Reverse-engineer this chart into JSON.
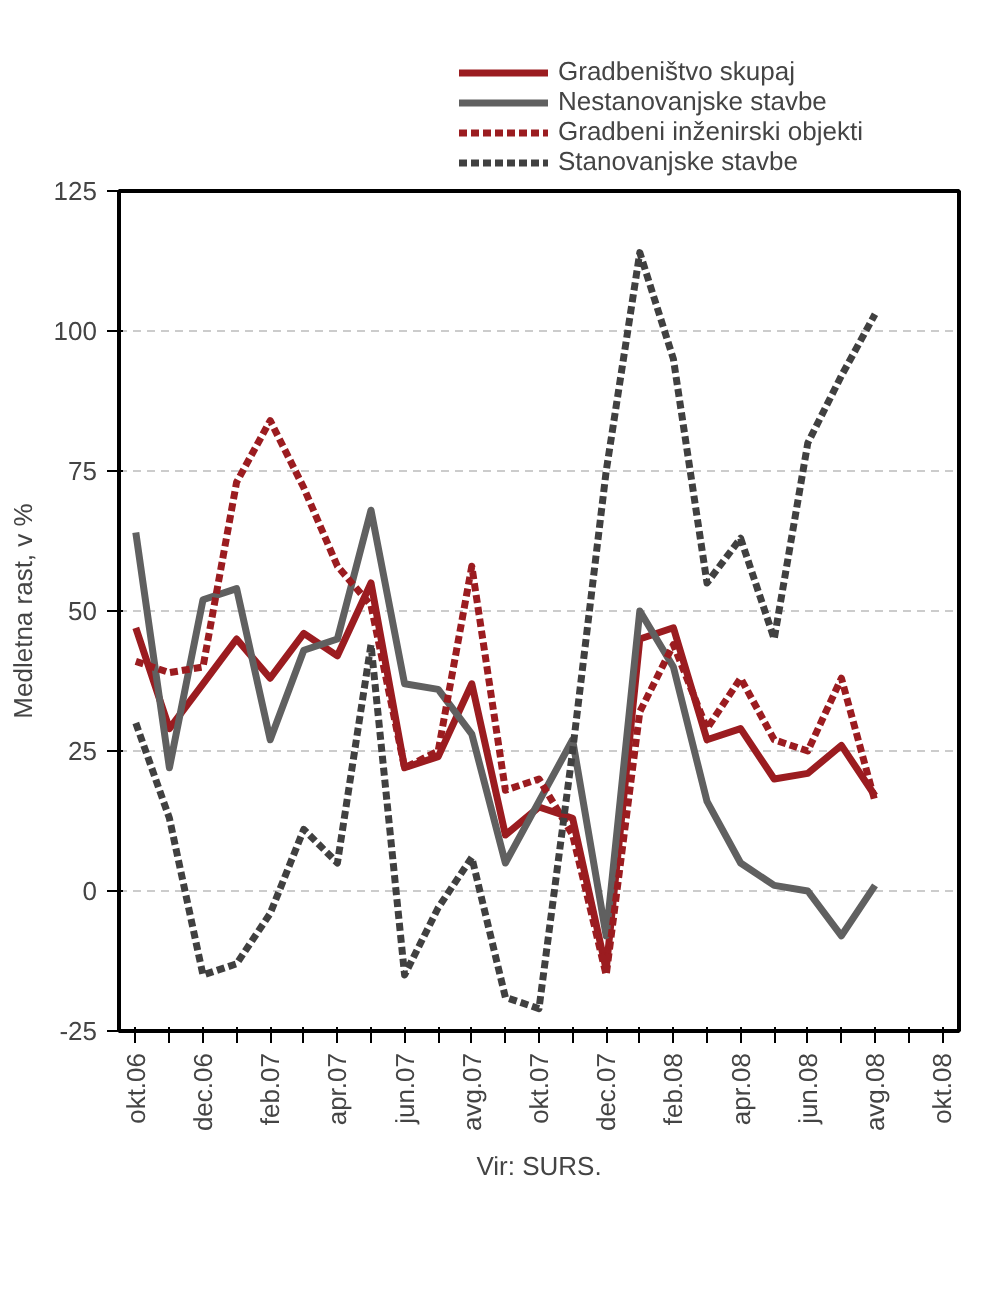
{
  "chart_data": {
    "type": "line",
    "categories": [
      "okt.06",
      null,
      "dec.06",
      null,
      "feb.07",
      null,
      "apr.07",
      null,
      "jun.07",
      null,
      "avg.07",
      null,
      "okt.07",
      null,
      "dec.07",
      null,
      "feb.08",
      null,
      "apr.08",
      null,
      "jun.08",
      null,
      "avg.08",
      null,
      "okt.08"
    ],
    "series": [
      {
        "name": "Gradbeništvo skupaj",
        "color": "#9b1c20",
        "line_style": "solid",
        "values": [
          47,
          29,
          37,
          45,
          38,
          46,
          42,
          55,
          22,
          24,
          37,
          10,
          15,
          13,
          -14,
          45,
          47,
          27,
          29,
          20,
          21,
          26,
          17,
          null,
          null
        ]
      },
      {
        "name": "Nestanovanjske stavbe",
        "color": "#606060",
        "line_style": "solid",
        "values": [
          64,
          22,
          52,
          54,
          27,
          43,
          45,
          68,
          37,
          36,
          28,
          5,
          16,
          27,
          -8,
          50,
          40,
          16,
          5,
          1,
          0,
          -8,
          1,
          null,
          null
        ]
      },
      {
        "name": "Gradbeni inženirski objekti",
        "color": "#9b1c20",
        "line_style": "dashed",
        "values": [
          41,
          39,
          40,
          73,
          84,
          72,
          58,
          51,
          22,
          25,
          58,
          18,
          20,
          10,
          -15,
          32,
          44,
          29,
          38,
          27,
          25,
          38,
          16,
          null,
          null
        ]
      },
      {
        "name": "Stanovanjske stavbe",
        "color": "#404040",
        "line_style": "dashed",
        "values": [
          30,
          13,
          -15,
          -13,
          -4,
          11,
          5,
          44,
          -15,
          -3,
          6,
          -19,
          -21,
          25,
          75,
          114,
          95,
          55,
          63,
          45,
          80,
          92,
          103,
          null,
          null
        ]
      }
    ],
    "ylim": [
      -25,
      125
    ],
    "yticks": [
      -25,
      0,
      25,
      50,
      75,
      100,
      125
    ],
    "ylabel": "Medletna rast, v %",
    "grid": "y",
    "legend": "top",
    "annotations": [
      "Vir: SURS."
    ]
  }
}
